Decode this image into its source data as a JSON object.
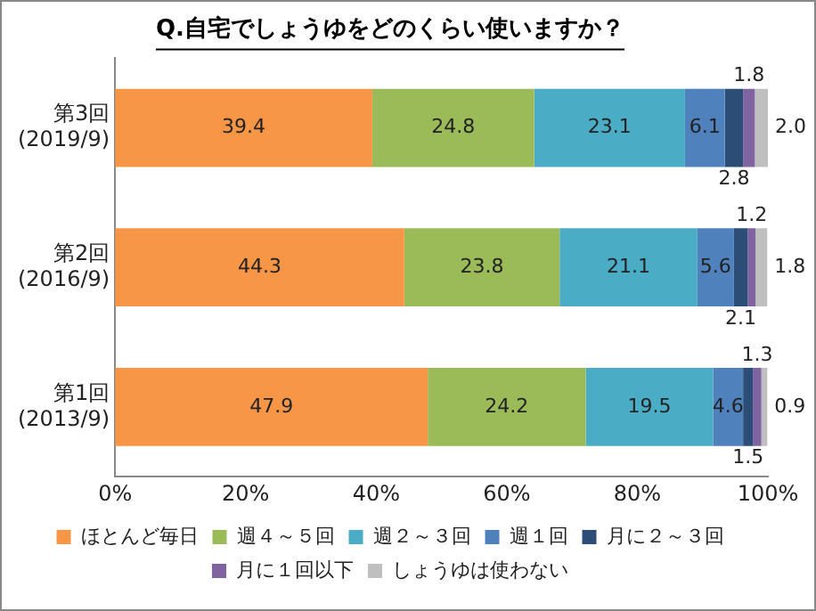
{
  "chart_data": {
    "type": "bar",
    "orientation": "horizontal",
    "stacked": true,
    "title": "Q.自宅でしょうゆをどのくらい使いますか？",
    "categories": [
      "第3回\n(2019/9)",
      "第2回\n(2016/9)",
      "第1回\n(2013/9)"
    ],
    "series": [
      {
        "name": "ほとんど毎日",
        "color": "#f79646",
        "values": [
          39.4,
          44.3,
          47.9
        ],
        "value_labels": [
          "39.4",
          "44.3",
          "47.9"
        ]
      },
      {
        "name": "週４～５回",
        "color": "#9bbb59",
        "values": [
          24.8,
          23.8,
          24.2
        ],
        "value_labels": [
          "24.8",
          "23.8",
          "24.2"
        ]
      },
      {
        "name": "週２～３回",
        "color": "#4bacc6",
        "values": [
          23.1,
          21.1,
          19.5
        ],
        "value_labels": [
          "23.1",
          "21.1",
          "19.5"
        ]
      },
      {
        "name": "週１回",
        "color": "#4f81bd",
        "values": [
          6.1,
          5.6,
          4.6
        ],
        "value_labels": [
          "6.1",
          "5.6",
          "4.6"
        ]
      },
      {
        "name": "月に２～３回",
        "color": "#2c4d75",
        "values": [
          2.8,
          2.1,
          1.5
        ],
        "value_labels": [
          "2.8",
          "2.1",
          "1.5"
        ]
      },
      {
        "name": "月に１回以下",
        "color": "#8064a2",
        "values": [
          1.8,
          1.2,
          1.3
        ],
        "value_labels": [
          "1.8",
          "1.2",
          "1.3"
        ]
      },
      {
        "name": "しょうゆは使わない",
        "color": "#bfbfbf",
        "values": [
          2.0,
          1.8,
          0.9
        ],
        "value_labels": [
          "2.0",
          "1.8",
          "0.9"
        ]
      }
    ],
    "xlim": [
      0,
      100
    ],
    "xticks": [
      {
        "value": 0,
        "label": "0%"
      },
      {
        "value": 20,
        "label": "20%"
      },
      {
        "value": 40,
        "label": "40%"
      },
      {
        "value": 60,
        "label": "60%"
      },
      {
        "value": 80,
        "label": "80%"
      },
      {
        "value": 100,
        "label": "100%"
      }
    ],
    "legend": "bottom",
    "grid": false
  }
}
